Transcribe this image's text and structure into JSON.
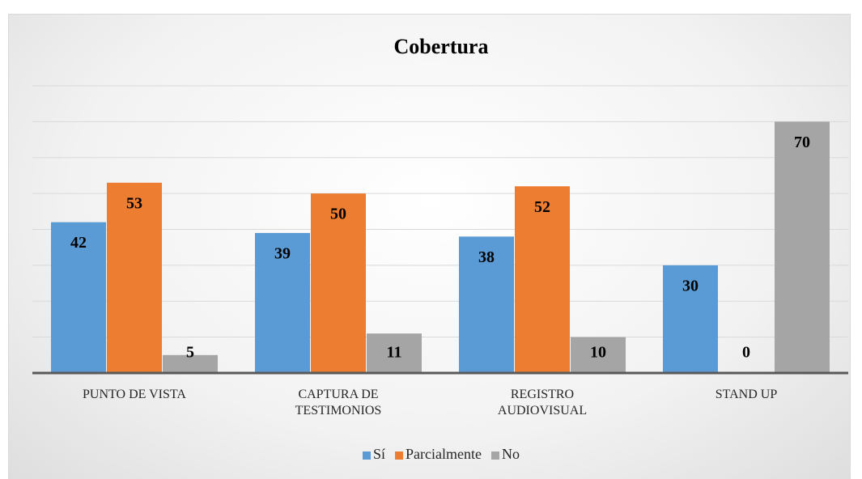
{
  "chart_data": {
    "type": "bar",
    "title": "Cobertura",
    "categories": [
      "PUNTO DE VISTA",
      "CAPTURA DE TESTIMONIOS",
      "REGISTRO AUDIOVISUAL",
      "STAND UP"
    ],
    "series": [
      {
        "name": "Sí",
        "color": "#5b9bd5",
        "values": [
          42,
          39,
          38,
          30
        ]
      },
      {
        "name": "Parcialmente",
        "color": "#ed7d31",
        "values": [
          53,
          50,
          52,
          0
        ]
      },
      {
        "name": "No",
        "color": "#a5a5a5",
        "values": [
          5,
          11,
          10,
          70
        ]
      }
    ],
    "ylim": [
      0,
      80
    ],
    "yticks": [
      0,
      10,
      20,
      30,
      40,
      50,
      60,
      70,
      80
    ],
    "grid": true,
    "legend": "bottom"
  }
}
